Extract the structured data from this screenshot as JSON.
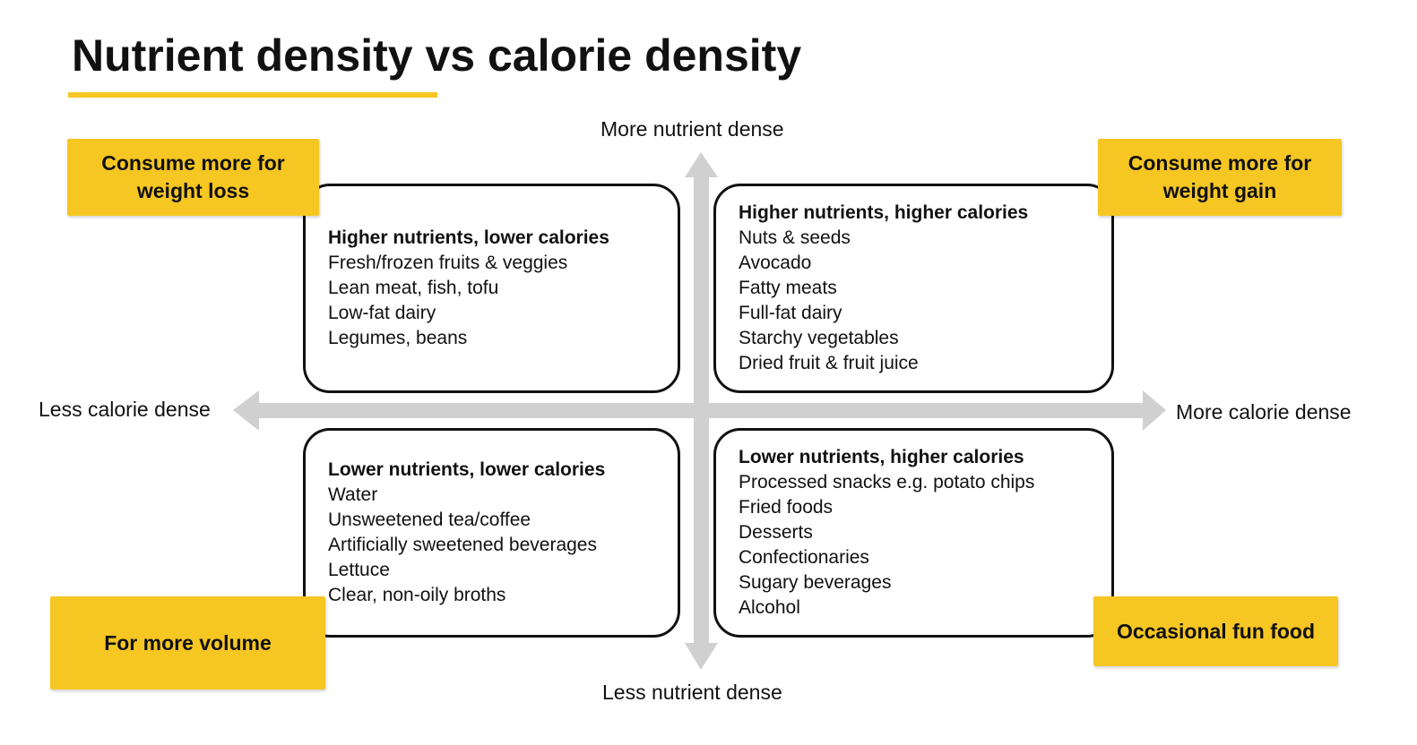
{
  "title": "Nutrient density vs calorie density",
  "colors": {
    "accent": "#f6c623",
    "axis": "#d0d0d0",
    "border": "#111111"
  },
  "axes": {
    "top": "More nutrient dense",
    "bottom": "Less nutrient dense",
    "left": "Less calorie dense",
    "right": "More calorie dense"
  },
  "quadrants": {
    "top_left": {
      "heading": "Higher nutrients, lower calories",
      "items": [
        "Fresh/frozen fruits & veggies",
        "Lean meat, fish, tofu",
        "Low-fat dairy",
        "Legumes, beans"
      ]
    },
    "top_right": {
      "heading": "Higher nutrients, higher calories",
      "items": [
        "Nuts & seeds",
        "Avocado",
        "Fatty meats",
        "Full-fat dairy",
        "Starchy vegetables",
        "Dried fruit & fruit juice"
      ]
    },
    "bottom_left": {
      "heading": "Lower nutrients, lower calories",
      "items": [
        "Water",
        "Unsweetened tea/coffee",
        "Artificially sweetened beverages",
        "Lettuce",
        "Clear, non-oily broths"
      ]
    },
    "bottom_right": {
      "heading": "Lower nutrients, higher calories",
      "items": [
        "Processed snacks e.g. potato chips",
        "Fried foods",
        "Desserts",
        "Confectionaries",
        "Sugary beverages",
        "Alcohol"
      ]
    }
  },
  "tags": {
    "top_left": "Consume more for weight loss",
    "top_right": "Consume more for weight gain",
    "bottom_left": "For more volume",
    "bottom_right": "Occasional fun food"
  }
}
